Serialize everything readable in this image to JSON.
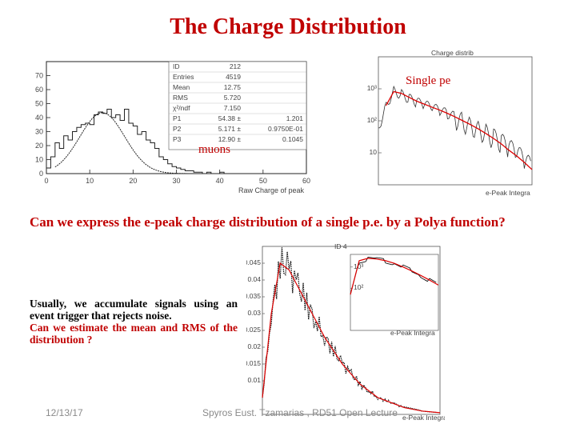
{
  "slide": {
    "title": "The Charge Distribution",
    "question": "Can we express the e-peak charge distribution of a single p.e. by a Polya function?",
    "body_line1": "Usually, we accumulate signals using an event trigger that rejects noise.",
    "body_line2": "Can we estimate the mean and RMS of the distribution ?",
    "footer_date": "12/13/17",
    "footer_author": "Spyros Eust. Tzamarias , RD51 Open Lecture"
  },
  "colors": {
    "title_red": "#c00000",
    "fit_red": "#dd0000",
    "hist": "#222222"
  },
  "chart_data": [
    {
      "type": "bar",
      "annotation": "muons",
      "xlabel": "Raw Charge of peak",
      "xticks": [
        "0",
        "10",
        "20",
        "30",
        "40",
        "50",
        "60"
      ],
      "yticks": [
        "0",
        "10",
        "20",
        "30",
        "40",
        "50",
        "60",
        "70"
      ],
      "xlim": [
        0,
        60
      ],
      "ylim": [
        0,
        80
      ],
      "stats": {
        "labels": [
          "ID",
          "Entries",
          "Mean",
          "RMS",
          "χ²/ndf",
          "P1",
          "P2",
          "P3"
        ],
        "values": [
          "212",
          "4519",
          "12.75",
          "5.720",
          "7.150",
          "54.38 ±",
          "5.171 ±",
          "12.90 ±"
        ],
        "errors": [
          "",
          "",
          "",
          "",
          "",
          "1.201",
          "0.9750E-01",
          "0.1045"
        ]
      },
      "x": [
        0.5,
        1.5,
        2.5,
        3.5,
        4.5,
        5.5,
        6.5,
        7.5,
        8.5,
        9.5,
        10.5,
        11.5,
        12.5,
        13.5,
        14.5,
        15.5,
        16.5,
        17.5,
        18.5,
        19.5,
        20.5,
        21.5,
        22.5,
        23.5,
        24.5,
        25.5,
        26.5,
        27.5,
        28.5,
        29.5,
        30.5,
        31.5,
        32.5,
        33.5,
        34.5,
        35.5,
        36.5,
        37.5,
        38.5,
        39.5,
        40.5,
        41.5,
        42.5,
        43.5,
        44.5,
        45.5,
        46.5,
        47.5,
        48.5,
        49.5,
        50.5,
        51.5,
        52.5,
        53.5,
        54.5,
        55.5,
        56.5,
        57.5,
        58.5,
        59.5
      ],
      "values": [
        4,
        12,
        22,
        18,
        27,
        24,
        30,
        33,
        35,
        36,
        35,
        42,
        44,
        43,
        46,
        40,
        42,
        38,
        46,
        36,
        34,
        28,
        30,
        24,
        22,
        18,
        12,
        10,
        7,
        5,
        4,
        3,
        2,
        2,
        1,
        1,
        0,
        1,
        0,
        0,
        1,
        0,
        0,
        0,
        0,
        0,
        0,
        0,
        0,
        0,
        0,
        0,
        0,
        0,
        0,
        0,
        0,
        0,
        0,
        0
      ]
    },
    {
      "type": "line",
      "annotation": "Single pe",
      "stats_title": "Charge distrib",
      "xlabel": "e-Peak Integra",
      "ylim_log": [
        1,
        10000
      ],
      "ytick_labels": [
        "10",
        "10²",
        "10³"
      ],
      "series": [
        {
          "x": [
            0,
            2,
            4,
            6,
            8,
            10,
            12,
            14,
            16,
            18,
            20,
            22,
            24,
            26,
            28,
            30,
            32,
            34,
            36,
            38,
            40
          ],
          "values": [
            60,
            320,
            900,
            700,
            520,
            400,
            330,
            270,
            220,
            175,
            140,
            110,
            85,
            65,
            48,
            35,
            25,
            17,
            11,
            7,
            4
          ]
        },
        {
          "x": [
            2,
            4,
            6,
            8,
            10,
            12,
            14,
            16,
            18,
            20,
            22,
            24,
            26,
            28,
            30,
            32,
            34,
            36,
            38,
            40
          ],
          "values": [
            300,
            820,
            720,
            540,
            410,
            330,
            265,
            215,
            170,
            132,
            100,
            76,
            56,
            40,
            28,
            19,
            12,
            8,
            5,
            3
          ]
        }
      ]
    },
    {
      "type": "line",
      "stats_title": "ID  4",
      "xlabel": "e-Peak Integra",
      "ytick_labels": [
        "0.01",
        "0.015",
        "0.02",
        "0.025",
        "0.03",
        "0.035",
        "0.04",
        "0.045"
      ],
      "series": [
        {
          "x": [
            0,
            0.5,
            1,
            1.5,
            2,
            2.5,
            3,
            3.5,
            4,
            4.5,
            5,
            5.5,
            6,
            6.5,
            7,
            7.5,
            8,
            9,
            10
          ],
          "values": [
            0.005,
            0.03,
            0.045,
            0.043,
            0.038,
            0.033,
            0.028,
            0.023,
            0.019,
            0.015,
            0.012,
            0.009,
            0.007,
            0.005,
            0.004,
            0.003,
            0.002,
            0.001,
            0.0005
          ]
        }
      ]
    },
    {
      "type": "line",
      "inset": true,
      "xlabel": "e-Peak Integra",
      "ytick_labels": [
        "10³",
        "10²"
      ],
      "series": [
        {
          "x": [
            0,
            1,
            2,
            3,
            4,
            5,
            6,
            7,
            8,
            9,
            10
          ],
          "values": [
            50,
            2000,
            2600,
            2400,
            2000,
            1500,
            1000,
            650,
            400,
            240,
            140
          ]
        }
      ]
    }
  ]
}
